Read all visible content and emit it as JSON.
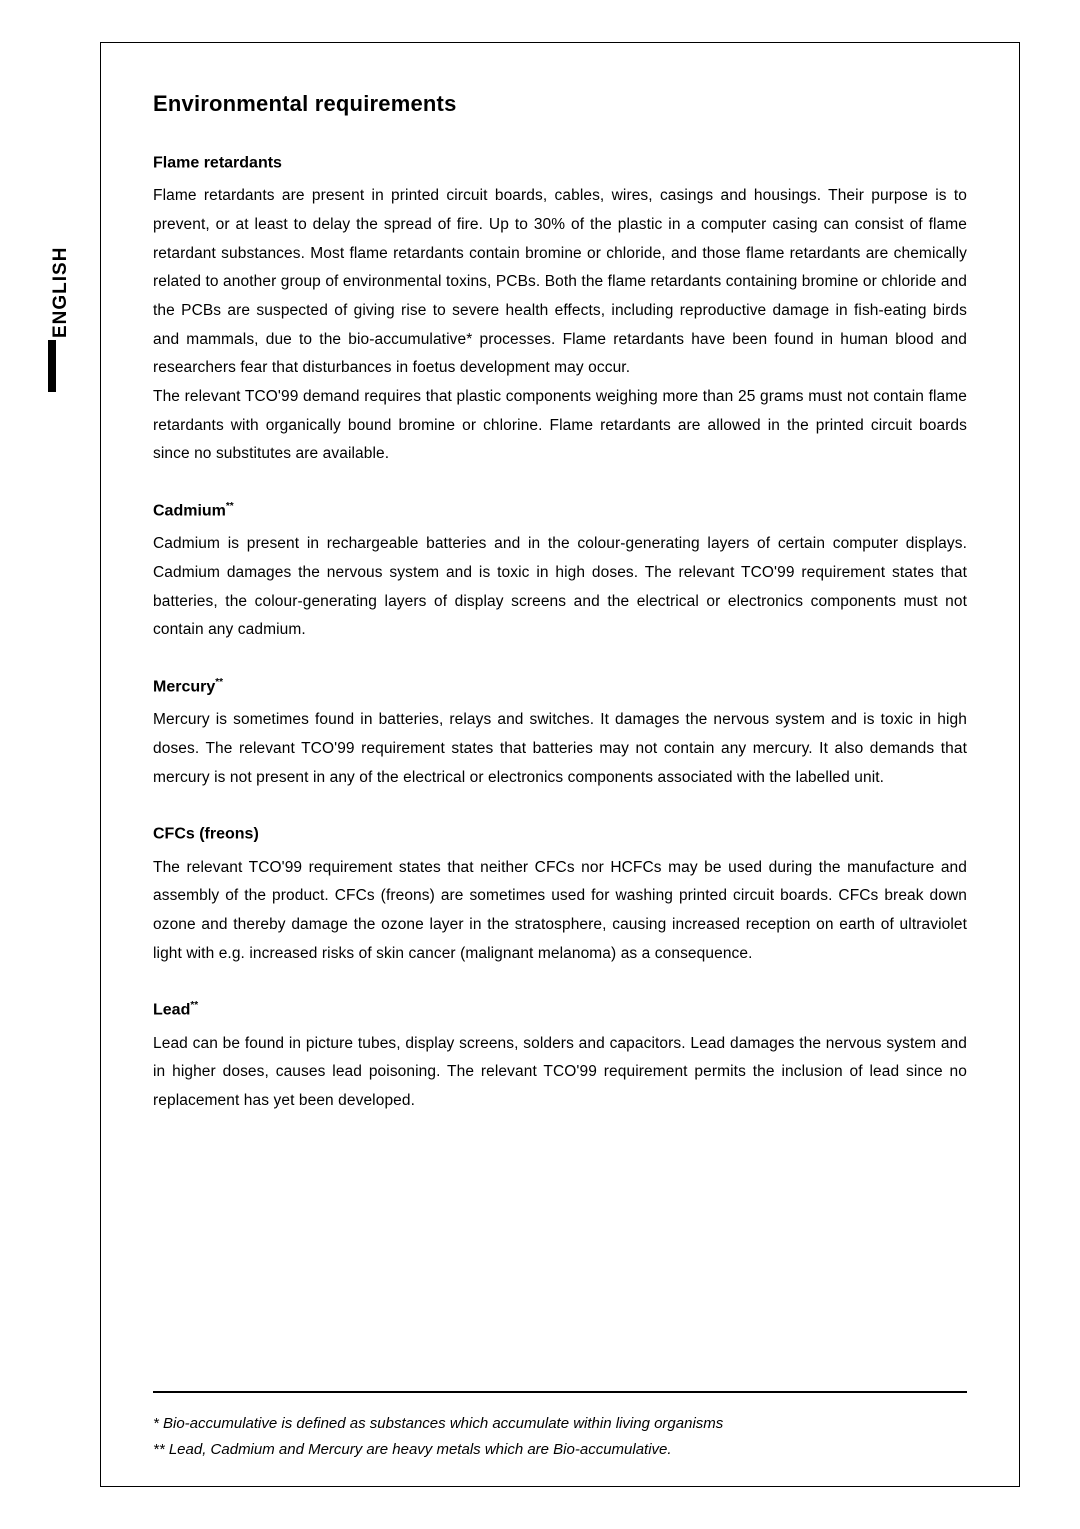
{
  "sidebar": {
    "language_label": "ENGLISH"
  },
  "page": {
    "title": "Environmental requirements",
    "sections": [
      {
        "heading": "Flame retardants",
        "heading_suffix": "",
        "body": "Flame retardants are present in printed circuit boards, cables, wires, casings and housings. Their purpose is to prevent, or at least to delay the spread of fire. Up to 30% of the plastic in a computer casing can consist of flame retardant substances. Most flame retardants contain bromine or chloride, and those flame retardants are chemically related to another group of environmental toxins, PCBs. Both the flame retardants containing bromine or chloride and the PCBs are suspected of giving rise to severe health effects, including reproductive damage in fish-eating birds and mammals, due to the bio-accumulative* processes. Flame retardants have been found in human blood and researchers fear that disturbances in foetus development may occur.\nThe relevant TCO'99 demand requires that plastic components weighing more than 25 grams must not contain flame retardants with organically bound bromine or chlorine. Flame retardants are allowed in the printed circuit boards since no substitutes are available."
      },
      {
        "heading": "Cadmium",
        "heading_suffix": "**",
        "body": "Cadmium is present in rechargeable batteries and in the colour-generating layers of certain computer displays. Cadmium damages the nervous system and is toxic in high doses. The relevant TCO'99 requirement states that batteries, the colour-generating layers of display screens and the electrical or electronics components must not contain any cadmium."
      },
      {
        "heading": "Mercury",
        "heading_suffix": "**",
        "body": "Mercury is sometimes found in batteries, relays and switches. It damages the nervous system and is toxic in high doses. The relevant TCO'99 requirement states that batteries may not contain any mercury. It also demands that mercury is not present in any of the electrical or electronics components associated with the labelled unit."
      },
      {
        "heading": "CFCs (freons)",
        "heading_suffix": "",
        "body": "The relevant TCO'99 requirement states that neither CFCs nor HCFCs may be used during the manufacture and assembly of the product. CFCs (freons) are sometimes used for washing printed circuit boards. CFCs break down ozone and thereby damage the ozone layer in the stratosphere, causing increased reception on earth of ultraviolet light with e.g. increased risks of skin cancer (malignant melanoma) as a consequence."
      },
      {
        "heading": "Lead",
        "heading_suffix": "**",
        "body": "Lead can be found in picture tubes, display screens, solders and capacitors. Lead damages the nervous system and in higher doses, causes lead poisoning. The relevant TCO'99 requirement permits the inclusion of lead since no replacement has yet been developed."
      }
    ],
    "footnotes": [
      "* Bio-accumulative is defined as substances which accumulate within living organisms",
      "** Lead, Cadmium and Mercury are heavy metals which are Bio-accumulative."
    ]
  },
  "style": {
    "background_color": "#ffffff",
    "text_color": "#000000",
    "border_color": "#000000",
    "font_family": "Arial, Helvetica, sans-serif",
    "title_fontsize": 22,
    "heading_fontsize": 16,
    "body_fontsize": 15.5,
    "footnote_fontsize": 15,
    "line_height": 1.85
  }
}
